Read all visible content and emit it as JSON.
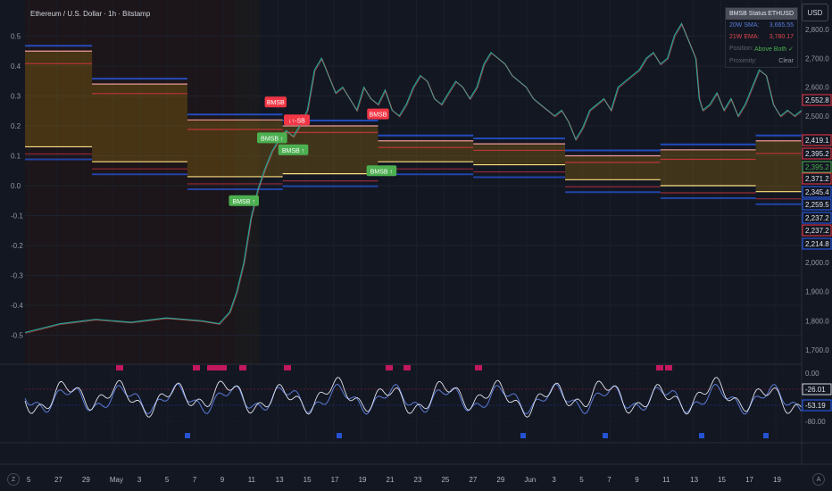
{
  "title": "Ethereum / U.S. Dollar · 1h · Bitstamp",
  "currency_button": "USD",
  "status_panel": {
    "header_left": "BMSB Status",
    "header_right": "ETHUSD",
    "rows": [
      {
        "label": "20W SMA:",
        "value": "3,665.55",
        "color": "#5b7bd6"
      },
      {
        "label": "21W EMA:",
        "value": "3,780.17",
        "color": "#e0474c"
      },
      {
        "label": "Position:",
        "value": "Above Both ✓",
        "color": "#4caf50"
      },
      {
        "label": "Proximity:",
        "value": "Clear",
        "color": "#9598a1"
      }
    ]
  },
  "chart_data": {
    "type": "line",
    "main_pane": {
      "left_axis_ticks": [
        "0.5",
        "0.4",
        "0.3",
        "0.2",
        "0.1",
        "0.0",
        "-0.1",
        "-0.2",
        "-0.3",
        "-0.4",
        "-0.5"
      ],
      "right_axis_ticks": [
        "2,800.0",
        "2,700.0",
        "2,600.0",
        "2,500.0",
        "2,000.0",
        "1,900.0",
        "1,800.0",
        "1,700.0"
      ],
      "price_labels": [
        {
          "text": "2,552.8",
          "color": "#f23645"
        },
        {
          "text": "2,419.1",
          "color": "#f23645"
        },
        {
          "text": "2,395.2",
          "color": "#f23645"
        },
        {
          "text": "2,395.2",
          "color": "#4caf50"
        },
        {
          "text": "2,371.2",
          "color": "#f23645"
        },
        {
          "text": "2,345.4",
          "color": "#2962ff"
        },
        {
          "text": "2,259.5",
          "color": "#2962ff"
        },
        {
          "text": "2,237.2",
          "color": "#2962ff"
        },
        {
          "text": "2,237.2",
          "color": "#f23645"
        },
        {
          "text": "2,214.8",
          "color": "#2962ff"
        }
      ],
      "price_points": [
        [
          0,
          1760
        ],
        [
          10,
          1790
        ],
        [
          20,
          1805
        ],
        [
          30,
          1795
        ],
        [
          40,
          1810
        ],
        [
          50,
          1800
        ],
        [
          55,
          1790
        ],
        [
          58,
          1830
        ],
        [
          60,
          1900
        ],
        [
          62,
          2000
        ],
        [
          64,
          2150
        ],
        [
          66,
          2250
        ],
        [
          68,
          2320
        ],
        [
          70,
          2380
        ],
        [
          72,
          2420
        ],
        [
          74,
          2450
        ],
        [
          76,
          2430
        ],
        [
          78,
          2470
        ],
        [
          80,
          2520
        ],
        [
          82,
          2660
        ],
        [
          84,
          2700
        ],
        [
          86,
          2640
        ],
        [
          88,
          2580
        ],
        [
          90,
          2600
        ],
        [
          92,
          2560
        ],
        [
          94,
          2520
        ],
        [
          96,
          2600
        ],
        [
          98,
          2560
        ],
        [
          100,
          2540
        ],
        [
          102,
          2590
        ],
        [
          104,
          2520
        ],
        [
          106,
          2500
        ],
        [
          108,
          2540
        ],
        [
          110,
          2600
        ],
        [
          112,
          2640
        ],
        [
          114,
          2620
        ],
        [
          116,
          2560
        ],
        [
          118,
          2540
        ],
        [
          120,
          2580
        ],
        [
          122,
          2620
        ],
        [
          124,
          2600
        ],
        [
          126,
          2560
        ],
        [
          128,
          2600
        ],
        [
          130,
          2680
        ],
        [
          132,
          2720
        ],
        [
          134,
          2700
        ],
        [
          136,
          2680
        ],
        [
          138,
          2640
        ],
        [
          140,
          2620
        ],
        [
          142,
          2600
        ],
        [
          144,
          2560
        ],
        [
          146,
          2540
        ],
        [
          148,
          2520
        ],
        [
          150,
          2500
        ],
        [
          152,
          2520
        ],
        [
          154,
          2480
        ],
        [
          156,
          2420
        ],
        [
          158,
          2460
        ],
        [
          160,
          2520
        ],
        [
          162,
          2540
        ],
        [
          164,
          2560
        ],
        [
          166,
          2520
        ],
        [
          168,
          2600
        ],
        [
          170,
          2620
        ],
        [
          172,
          2640
        ],
        [
          174,
          2660
        ],
        [
          176,
          2700
        ],
        [
          178,
          2720
        ],
        [
          180,
          2680
        ],
        [
          182,
          2700
        ],
        [
          184,
          2780
        ],
        [
          186,
          2820
        ],
        [
          188,
          2760
        ],
        [
          190,
          2700
        ],
        [
          191,
          2560
        ],
        [
          192,
          2520
        ],
        [
          194,
          2540
        ],
        [
          196,
          2580
        ],
        [
          198,
          2520
        ],
        [
          200,
          2560
        ],
        [
          202,
          2500
        ],
        [
          204,
          2540
        ],
        [
          206,
          2600
        ],
        [
          208,
          2660
        ],
        [
          210,
          2640
        ],
        [
          212,
          2540
        ],
        [
          214,
          2500
        ],
        [
          216,
          2520
        ],
        [
          218,
          2500
        ],
        [
          220,
          2520
        ]
      ],
      "x_domain": [
        0,
        220
      ],
      "bands": [
        {
          "x0": 0,
          "x1": 19,
          "upper": 0.45,
          "mid": 0.42,
          "lower": 0.13
        },
        {
          "x0": 19,
          "x1": 46,
          "upper": 0.34,
          "mid": 0.32,
          "lower": 0.08
        },
        {
          "x0": 46,
          "x1": 73,
          "upper": 0.22,
          "mid": 0.2,
          "lower": 0.03
        },
        {
          "x0": 73,
          "x1": 100,
          "upper": 0.2,
          "mid": 0.19,
          "lower": 0.04
        },
        {
          "x0": 100,
          "x1": 127,
          "upper": 0.15,
          "mid": 0.14,
          "lower": 0.08
        },
        {
          "x0": 127,
          "x1": 153,
          "upper": 0.14,
          "mid": 0.13,
          "lower": 0.07
        },
        {
          "x0": 153,
          "x1": 180,
          "upper": 0.1,
          "mid": 0.09,
          "lower": 0.02
        },
        {
          "x0": 180,
          "x1": 207,
          "upper": 0.12,
          "mid": 0.1,
          "lower": 0.0
        },
        {
          "x0": 207,
          "x1": 220,
          "upper": 0.15,
          "mid": 0.12,
          "lower": -0.02
        }
      ],
      "markers": [
        {
          "x": 62,
          "text": "BMSB ↑",
          "color": "#4caf50",
          "y": -0.05
        },
        {
          "x": 70,
          "text": "BMSB ↑",
          "color": "#4caf50",
          "y": 0.16
        },
        {
          "x": 76,
          "text": "BMSB ↑",
          "color": "#4caf50",
          "y": 0.12
        },
        {
          "x": 101,
          "text": "BMSB ↑",
          "color": "#4caf50",
          "y": 0.05
        },
        {
          "x": 71,
          "text": "BMSB",
          "color": "#f23645",
          "y": 0.28
        },
        {
          "x": 77,
          "text": "↓↑-SB",
          "color": "#f23645",
          "y": 0.22
        },
        {
          "x": 100,
          "text": "BMSB",
          "color": "#f23645",
          "y": 0.24
        }
      ]
    },
    "oscillator_pane": {
      "ticks": [
        "0.00",
        "-26.01",
        "-53.19",
        "-80.00"
      ],
      "value_labels": [
        {
          "text": "-26.01",
          "color": "#d1d4dc"
        },
        {
          "text": "-53.19",
          "color": "#2962ff"
        }
      ]
    },
    "x_tick_labels": [
      "5",
      "27",
      "29",
      "May",
      "3",
      "5",
      "7",
      "9",
      "11",
      "13",
      "15",
      "17",
      "19",
      "21",
      "23",
      "25",
      "27",
      "29",
      "Jun",
      "3",
      "5",
      "7",
      "9",
      "11",
      "13",
      "15",
      "17",
      "19"
    ]
  },
  "controls": {
    "zoom_left": "Z",
    "auto_right": "A"
  }
}
